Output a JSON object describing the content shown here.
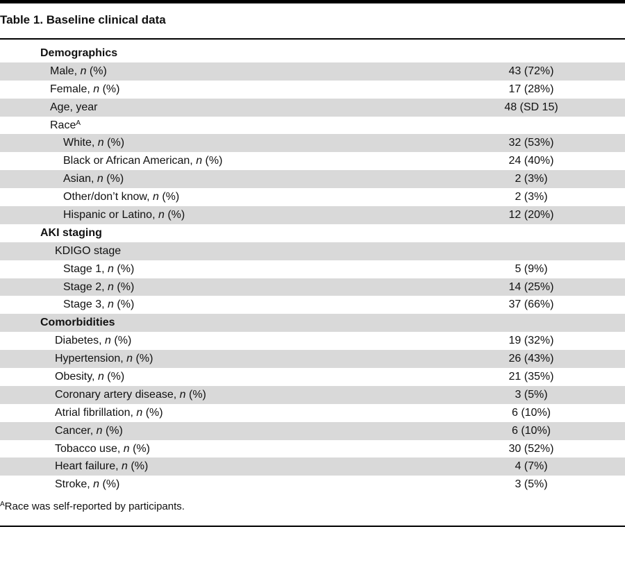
{
  "title": "Table 1. Baseline clinical data",
  "rows": [
    {
      "label": "Demographics",
      "value": "",
      "kind": "section",
      "level": 0,
      "shaded": false
    },
    {
      "label": "Male, n (%)",
      "value": "43 (72%)",
      "kind": "item",
      "level": 1,
      "shaded": true
    },
    {
      "label": "Female, n (%)",
      "value": "17 (28%)",
      "kind": "item",
      "level": 1,
      "shaded": false
    },
    {
      "label": "Age, year",
      "value": "48 (SD 15)",
      "kind": "item",
      "level": 1,
      "shaded": true
    },
    {
      "label": "Race",
      "sup": "A",
      "value": "",
      "kind": "item",
      "level": 1,
      "shaded": false
    },
    {
      "label": "White, n (%)",
      "value": "32 (53%)",
      "kind": "item",
      "level": 2,
      "shaded": true
    },
    {
      "label": "Black or African American, n (%)",
      "value": "24 (40%)",
      "kind": "item",
      "level": 2,
      "shaded": false
    },
    {
      "label": "Asian, n (%)",
      "value": "2 (3%)",
      "kind": "item",
      "level": 2,
      "shaded": true
    },
    {
      "label": "Other/don’t know, n (%)",
      "value": "2 (3%)",
      "kind": "item",
      "level": 2,
      "shaded": false
    },
    {
      "label": "Hispanic or Latino, n (%)",
      "value": "12 (20%)",
      "kind": "item",
      "level": 2,
      "shaded": true
    },
    {
      "label": "AKI staging",
      "value": "",
      "kind": "section",
      "level": 0,
      "shaded": false
    },
    {
      "label": "KDIGO stage",
      "value": "",
      "kind": "item",
      "level": 3,
      "shaded": true
    },
    {
      "label": "Stage 1, n (%)",
      "value": "5 (9%)",
      "kind": "item",
      "level": 2,
      "shaded": false
    },
    {
      "label": "Stage 2, n (%)",
      "value": "14 (25%)",
      "kind": "item",
      "level": 2,
      "shaded": true
    },
    {
      "label": "Stage 3, n (%)",
      "value": "37 (66%)",
      "kind": "item",
      "level": 2,
      "shaded": false
    },
    {
      "label": "Comorbidities",
      "value": "",
      "kind": "section",
      "level": 0,
      "shaded": true
    },
    {
      "label": "Diabetes, n (%)",
      "value": "19 (32%)",
      "kind": "item",
      "level": 3,
      "shaded": false
    },
    {
      "label": "Hypertension, n (%)",
      "value": "26 (43%)",
      "kind": "item",
      "level": 3,
      "shaded": true
    },
    {
      "label": "Obesity, n (%)",
      "value": "21 (35%)",
      "kind": "item",
      "level": 3,
      "shaded": false
    },
    {
      "label": "Coronary artery disease, n (%)",
      "value": "3 (5%)",
      "kind": "item",
      "level": 3,
      "shaded": true
    },
    {
      "label": "Atrial fibrillation, n (%)",
      "value": "6 (10%)",
      "kind": "item",
      "level": 3,
      "shaded": false
    },
    {
      "label": "Cancer, n (%)",
      "value": "6 (10%)",
      "kind": "item",
      "level": 3,
      "shaded": true
    },
    {
      "label": "Tobacco use, n (%)",
      "value": "30 (52%)",
      "kind": "item",
      "level": 3,
      "shaded": false
    },
    {
      "label": "Heart failure, n (%)",
      "value": "4 (7%)",
      "kind": "item",
      "level": 3,
      "shaded": true
    },
    {
      "label": "Stroke, n (%)",
      "value": "3 (5%)",
      "kind": "item",
      "level": 3,
      "shaded": false
    }
  ],
  "footnote": {
    "sup": "A",
    "text": "Race was self-reported by participants."
  }
}
